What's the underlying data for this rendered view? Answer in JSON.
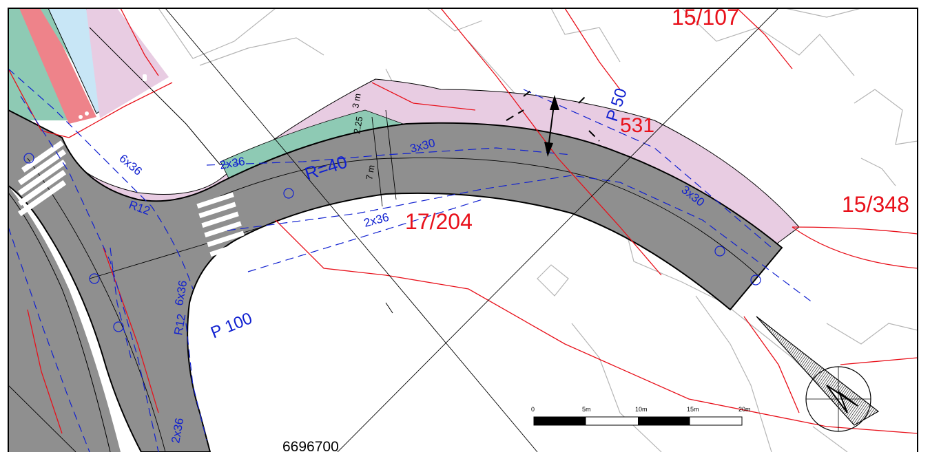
{
  "parcels": {
    "p1": "15/107",
    "p2": "15/348",
    "p3": "17/204",
    "p4": "531"
  },
  "design_labels": {
    "radius": "R=40",
    "r12_a": "R12",
    "r12_b": "R12",
    "slope_6x36_a": "6x36",
    "slope_6x36_b": "6x36",
    "slope_2x36_a": "2x36",
    "slope_2x36_b": "2x36",
    "slope_2x36_c": "2x36",
    "slope_3x30_a": "3x30",
    "slope_3x30_b": "3x30",
    "p100": "P 100",
    "p50": "P 50",
    "w_3m": "3 m",
    "w_225": "2.25",
    "w_7m": "7 m"
  },
  "coordinate_label": "6696700",
  "scale_bar": {
    "ticks": [
      "0",
      "5m",
      "10m",
      "15m",
      "20m"
    ]
  },
  "colors": {
    "road": "#8f8f8f",
    "sidewalk": "#e8cce2",
    "verge": "#8ecab4",
    "bikelane": "#ee838a",
    "water": "#c8e6f6",
    "parcel_line": "#e8101a",
    "design_line": "#1020d0"
  },
  "north_arrow": "north-arrow-icon"
}
